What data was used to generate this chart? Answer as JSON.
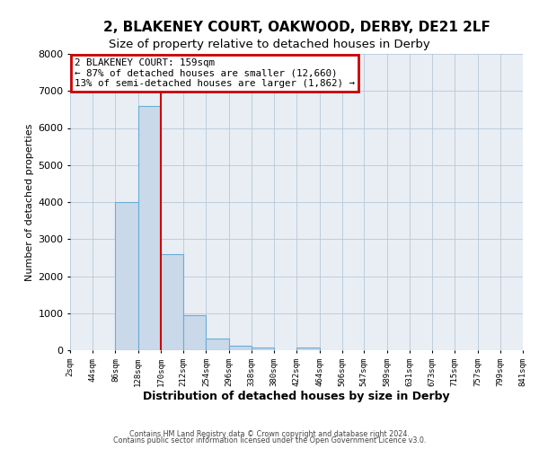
{
  "title": "2, BLAKENEY COURT, OAKWOOD, DERBY, DE21 2LF",
  "subtitle": "Size of property relative to detached houses in Derby",
  "xlabel": "Distribution of detached houses by size in Derby",
  "ylabel": "Number of detached properties",
  "bin_edges": [
    2,
    44,
    86,
    128,
    170,
    212,
    254,
    296,
    338,
    380,
    422,
    464,
    506,
    547,
    589,
    631,
    673,
    715,
    757,
    799,
    841
  ],
  "bar_heights": [
    0,
    0,
    4000,
    6600,
    2600,
    950,
    320,
    130,
    80,
    0,
    80,
    0,
    0,
    0,
    0,
    0,
    0,
    0,
    0,
    0
  ],
  "bar_color": "#c9d9ea",
  "bar_edge_color": "#6aadd5",
  "property_line_x": 170,
  "property_line_color": "#cc0000",
  "ylim": [
    0,
    8000
  ],
  "yticks": [
    0,
    1000,
    2000,
    3000,
    4000,
    5000,
    6000,
    7000,
    8000
  ],
  "annotation_title": "2 BLAKENEY COURT: 159sqm",
  "annotation_line1": "← 87% of detached houses are smaller (12,660)",
  "annotation_line2": "13% of semi-detached houses are larger (1,862) →",
  "annotation_box_color": "#cc0000",
  "footer_line1": "Contains HM Land Registry data © Crown copyright and database right 2024.",
  "footer_line2": "Contains public sector information licensed under the Open Government Licence v3.0.",
  "title_fontsize": 11,
  "subtitle_fontsize": 9.5,
  "axis_background": "#e8eef4",
  "figure_background": "#ffffff",
  "grid_color": "#b8c8d8",
  "tick_fontsize": 6.5,
  "ylabel_fontsize": 8,
  "xlabel_fontsize": 9
}
